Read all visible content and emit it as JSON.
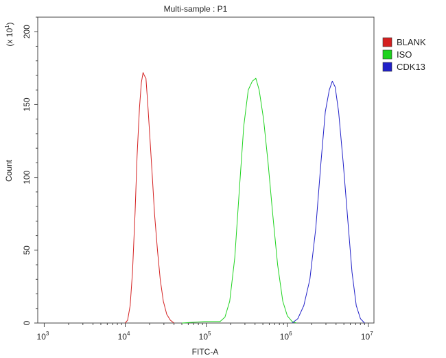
{
  "chart_data": {
    "type": "line",
    "title": "Multi-sample : P1",
    "xlabel": "FITC-A",
    "ylabel": "Count",
    "y_multiplier_label": "(x 10",
    "y_multiplier_exp": "1",
    "x_scale": "log",
    "xlim": [
      1000,
      10000000
    ],
    "ylim": [
      0,
      210
    ],
    "x_ticks": [
      {
        "value": 1000,
        "base": "10",
        "exp": "3"
      },
      {
        "value": 10000,
        "base": "10",
        "exp": "4"
      },
      {
        "value": 100000,
        "base": "10",
        "exp": "5"
      },
      {
        "value": 1000000,
        "base": "10",
        "exp": "6"
      },
      {
        "value": 10000000,
        "base": "10",
        "exp": "7"
      }
    ],
    "y_ticks": [
      {
        "value": 0,
        "label": "0"
      },
      {
        "value": 50,
        "label": "50"
      },
      {
        "value": 100,
        "label": "100"
      },
      {
        "value": 150,
        "label": "150"
      },
      {
        "value": 200,
        "label": "200"
      }
    ],
    "grid": false,
    "legend_position": "top-right",
    "series": [
      {
        "name": "BLANK",
        "color": "#d42020",
        "points": [
          [
            10000,
            0
          ],
          [
            10700,
            2
          ],
          [
            11500,
            12
          ],
          [
            12300,
            35
          ],
          [
            13200,
            75
          ],
          [
            14000,
            115
          ],
          [
            15000,
            148
          ],
          [
            15800,
            165
          ],
          [
            16600,
            172
          ],
          [
            17200,
            170
          ],
          [
            18000,
            168
          ],
          [
            19000,
            150
          ],
          [
            20000,
            130
          ],
          [
            21500,
            102
          ],
          [
            23000,
            75
          ],
          [
            25000,
            50
          ],
          [
            27000,
            30
          ],
          [
            29500,
            15
          ],
          [
            32500,
            6
          ],
          [
            36000,
            2
          ],
          [
            40000,
            0
          ]
        ]
      },
      {
        "name": "ISO",
        "color": "#1ed31e",
        "points": [
          [
            50000,
            0
          ],
          [
            70000,
            0.5
          ],
          [
            95000,
            1
          ],
          [
            120000,
            1
          ],
          [
            148000,
            1
          ],
          [
            170000,
            4
          ],
          [
            195000,
            15
          ],
          [
            225000,
            45
          ],
          [
            255000,
            90
          ],
          [
            290000,
            135
          ],
          [
            330000,
            160
          ],
          [
            370000,
            166
          ],
          [
            410000,
            168
          ],
          [
            450000,
            160
          ],
          [
            510000,
            140
          ],
          [
            580000,
            110
          ],
          [
            660000,
            75
          ],
          [
            760000,
            40
          ],
          [
            880000,
            15
          ],
          [
            1000000,
            5
          ],
          [
            1150000,
            1
          ],
          [
            1300000,
            0
          ]
        ]
      },
      {
        "name": "CDK13",
        "color": "#2020c8",
        "points": [
          [
            1150000,
            0
          ],
          [
            1350000,
            3
          ],
          [
            1600000,
            12
          ],
          [
            1900000,
            30
          ],
          [
            2250000,
            65
          ],
          [
            2600000,
            110
          ],
          [
            2950000,
            145
          ],
          [
            3300000,
            160
          ],
          [
            3600000,
            166
          ],
          [
            3900000,
            162
          ],
          [
            4300000,
            145
          ],
          [
            4900000,
            110
          ],
          [
            5600000,
            70
          ],
          [
            6300000,
            35
          ],
          [
            7100000,
            12
          ],
          [
            8000000,
            3
          ],
          [
            9000000,
            0
          ]
        ]
      }
    ]
  }
}
